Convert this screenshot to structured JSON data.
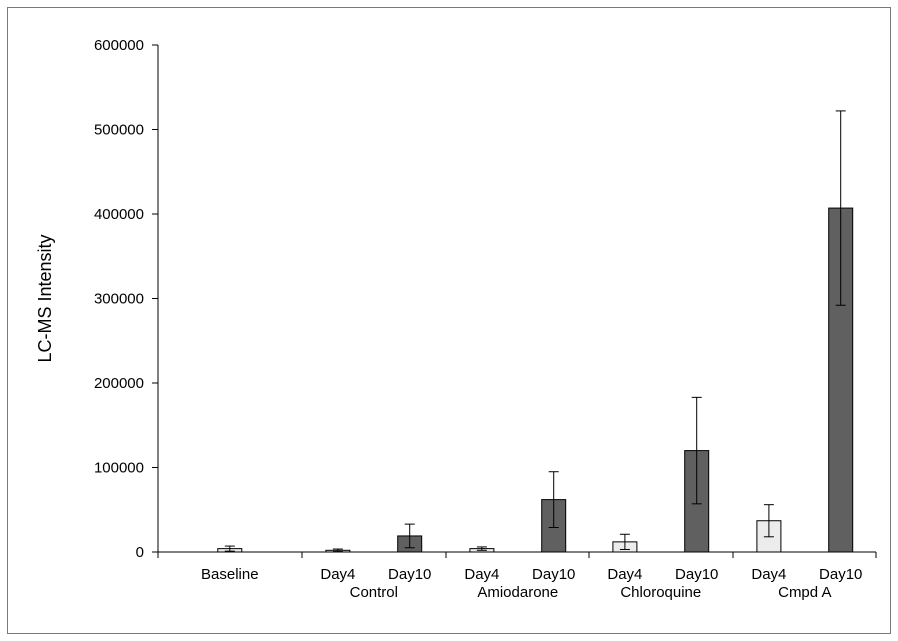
{
  "chart_data": {
    "type": "bar",
    "title": "",
    "xlabel": "",
    "ylabel": "LC-MS Intensity",
    "ylim": [
      0,
      600000
    ],
    "yticks": [
      "0",
      "100000",
      "200000",
      "300000",
      "400000",
      "500000",
      "600000"
    ],
    "grid": false,
    "legend": "none",
    "groups": [
      {
        "name": "Baseline",
        "bars": [
          {
            "label": "",
            "value": 4000,
            "error": 3000,
            "timepoint": "baseline"
          }
        ]
      },
      {
        "name": "Control",
        "bars": [
          {
            "label": "Day4",
            "value": 2000,
            "error": 1500,
            "timepoint": "day4"
          },
          {
            "label": "Day10",
            "value": 19000,
            "error": 14000,
            "timepoint": "day10"
          }
        ]
      },
      {
        "name": "Amiodarone",
        "bars": [
          {
            "label": "Day4",
            "value": 4000,
            "error": 2000,
            "timepoint": "day4"
          },
          {
            "label": "Day10",
            "value": 62000,
            "error": 33000,
            "timepoint": "day10"
          }
        ]
      },
      {
        "name": "Chloroquine",
        "bars": [
          {
            "label": "Day4",
            "value": 12000,
            "error": 9000,
            "timepoint": "day4"
          },
          {
            "label": "Day10",
            "value": 120000,
            "error": 63000,
            "timepoint": "day10"
          }
        ]
      },
      {
        "name": "Cmpd A",
        "bars": [
          {
            "label": "Day4",
            "value": 37000,
            "error": 19000,
            "timepoint": "day4"
          },
          {
            "label": "Day10",
            "value": 407000,
            "error": 115000,
            "timepoint": "day10"
          }
        ]
      }
    ],
    "colors": {
      "baseline": "#ececec",
      "day4": "#ececec",
      "day10": "#606060",
      "bar_border": "#000000",
      "axis": "#000000"
    }
  }
}
